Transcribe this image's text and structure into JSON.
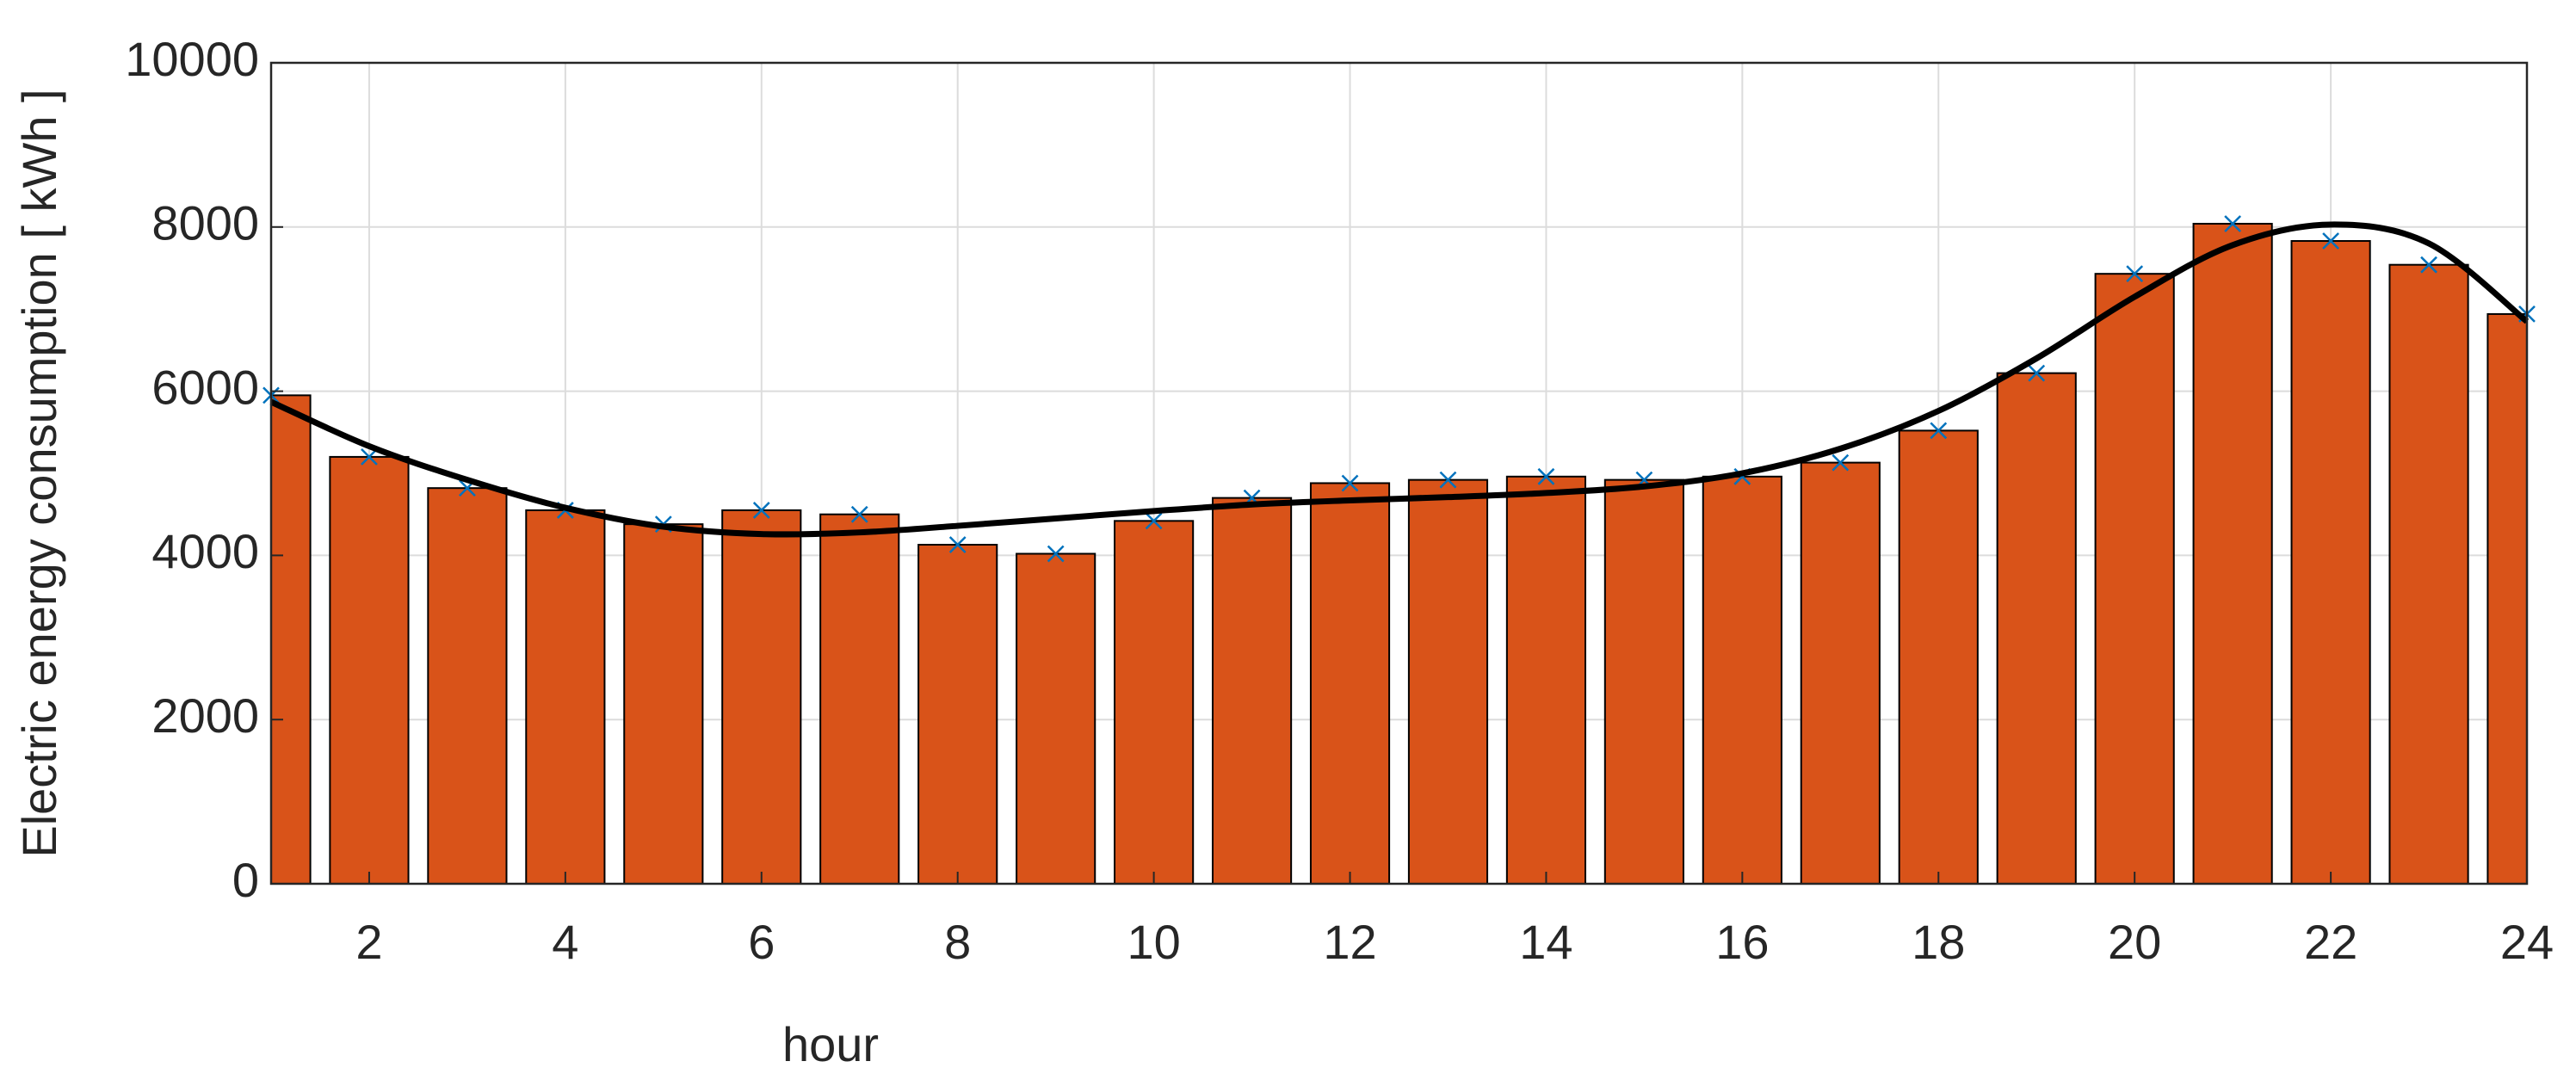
{
  "chart_data": {
    "type": "bar",
    "xlabel": "hour",
    "ylabel": "Electric energy consumption  [ kWh ]",
    "x": [
      1,
      2,
      3,
      4,
      5,
      6,
      7,
      8,
      9,
      10,
      11,
      12,
      13,
      14,
      15,
      16,
      17,
      18,
      19,
      20,
      21,
      22,
      23,
      24
    ],
    "xlim": [
      1,
      24
    ],
    "xticks": [
      2,
      4,
      6,
      8,
      10,
      12,
      14,
      16,
      18,
      20,
      22,
      24
    ],
    "ylim": [
      0,
      10000
    ],
    "yticks": [
      0,
      2000,
      4000,
      6000,
      8000,
      10000
    ],
    "grid": true,
    "series": [
      {
        "kind": "bar",
        "color": "#d95319",
        "values": [
          5950,
          5200,
          4820,
          4550,
          4380,
          4550,
          4500,
          4130,
          4020,
          4420,
          4700,
          4880,
          4920,
          4960,
          4920,
          4960,
          5130,
          5520,
          6220,
          7430,
          8040,
          7830,
          7540,
          6940
        ]
      },
      {
        "kind": "marker",
        "color": "#0072bd",
        "values": [
          5950,
          5200,
          4820,
          4550,
          4380,
          4550,
          4500,
          4130,
          4020,
          4420,
          4700,
          4880,
          4920,
          4960,
          4920,
          4960,
          5130,
          5520,
          6220,
          7430,
          8040,
          7830,
          7540,
          6940
        ]
      },
      {
        "kind": "line",
        "color": "#000000",
        "values": [
          5870,
          5330,
          4920,
          4580,
          4350,
          4260,
          4280,
          4360,
          4450,
          4540,
          4620,
          4670,
          4710,
          4760,
          4840,
          5000,
          5300,
          5760,
          6400,
          7150,
          7780,
          8030,
          7800,
          6850
        ]
      }
    ]
  }
}
